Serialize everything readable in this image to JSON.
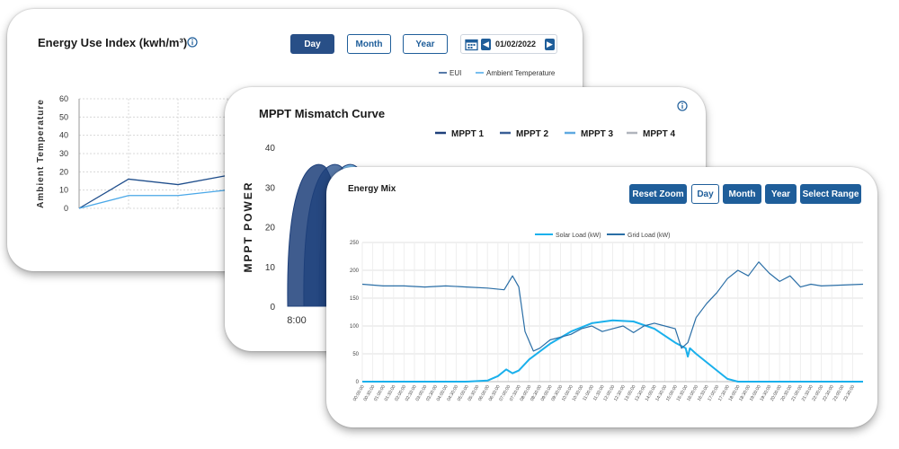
{
  "eui": {
    "title": "Energy Use Index (kwh/m³)",
    "info_icon": "info-circle-icon",
    "buttons": {
      "day": "Day",
      "month": "Month",
      "year": "Year"
    },
    "date": "01/02/2022",
    "calendar_icon": "calendar-icon",
    "prev_icon": "chevron-left-icon",
    "next_icon": "chevron-right-icon",
    "legend": [
      "EUI",
      "Ambient Temperature"
    ],
    "ylabel": "Ambient Temperature",
    "yticks": [
      "60",
      "50",
      "40",
      "30",
      "20",
      "10",
      "0"
    ]
  },
  "mppt": {
    "title": "MPPT Mismatch Curve",
    "info_icon": "info-circle-icon",
    "legend": [
      "MPPT 1",
      "MPPT 2",
      "MPPT 3",
      "MPPT 4"
    ],
    "ylabel": "MPPT POWER",
    "yticks": [
      "40",
      "30",
      "20",
      "10",
      "0"
    ],
    "xticks": [
      "8:00"
    ]
  },
  "mix": {
    "title": "Energy Mix",
    "buttons": {
      "reset_zoom": "Reset Zoom",
      "day": "Day",
      "month": "Month",
      "year": "Year",
      "select_range": "Select Range"
    },
    "legend": [
      "Solar Load (kW)",
      "Grid Load (kW)"
    ],
    "yticks": [
      "250",
      "200",
      "150",
      "100",
      "50",
      "0"
    ]
  },
  "colors": {
    "eui": "#1f4e8c",
    "ambient": "#4aa8e8",
    "mppt1": "#1d3f7a",
    "mppt2": "#3a5f96",
    "mppt3": "#5fa9e0",
    "mppt4": "#b0b4bc",
    "solar": "#1ab0ec",
    "grid": "#2a6ea6"
  },
  "chart_data": [
    {
      "type": "line",
      "title": "Energy Use Index (kwh/m³)",
      "ylabel": "Ambient Temperature",
      "ylim": [
        0,
        60
      ],
      "series": [
        {
          "name": "EUI",
          "x": [
            0,
            1,
            2,
            3,
            4
          ],
          "values": [
            0,
            16,
            13,
            18,
            21
          ]
        },
        {
          "name": "Ambient Temperature",
          "x": [
            0,
            1,
            2,
            3,
            4
          ],
          "values": [
            0,
            7,
            7,
            10,
            16
          ]
        }
      ],
      "grid": true,
      "legend": "top-right"
    },
    {
      "type": "area",
      "title": "MPPT Mismatch Curve",
      "ylabel": "MPPT POWER",
      "ylim": [
        0,
        40
      ],
      "x_tick_labels": [
        "8:00"
      ],
      "series": [
        {
          "name": "MPPT 1",
          "peak": 35
        },
        {
          "name": "MPPT 2",
          "peak": 35
        },
        {
          "name": "MPPT 3",
          "peak": 35
        },
        {
          "name": "MPPT 4",
          "peak": 35
        }
      ],
      "legend": "top-right"
    },
    {
      "type": "line",
      "title": "Energy Mix",
      "ylim": [
        0,
        250
      ],
      "x_tick_labels": [
        "00:00:00",
        "00:30:00",
        "01:00:00",
        "01:30:00",
        "02:00:00",
        "02:30:00",
        "03:00:00",
        "03:30:00",
        "04:00:00",
        "04:30:00",
        "05:00:00",
        "05:30:00",
        "06:00:00",
        "06:30:00",
        "07:00:00",
        "07:30:00",
        "08:00:00",
        "08:30:00",
        "09:00:00",
        "09:30:00",
        "10:00:00",
        "10:30:00",
        "11:00:00",
        "11:30:00",
        "12:00:00",
        "12:30:00",
        "13:00:00",
        "13:30:00",
        "14:00:00",
        "14:30:00",
        "15:00:00",
        "15:30:00",
        "16:00:00",
        "16:30:00",
        "17:00:00",
        "17:30:00",
        "18:00:00",
        "18:30:00",
        "19:00:00",
        "19:30:00",
        "20:00:00",
        "20:30:00",
        "21:00:00",
        "21:30:00",
        "22:00:00",
        "22:30:00",
        "23:00:00",
        "23:30:00"
      ],
      "x_hours": [
        0,
        24
      ],
      "series": [
        {
          "name": "Solar Load (kW)",
          "x": [
            0,
            5,
            6,
            6.5,
            6.9,
            7.2,
            7.5,
            8,
            9,
            10,
            11,
            12,
            13,
            14,
            15,
            15.5,
            15.6,
            15.7,
            16,
            17,
            17.5,
            18,
            24
          ],
          "values": [
            0,
            0,
            2,
            10,
            22,
            15,
            20,
            40,
            68,
            90,
            105,
            110,
            108,
            95,
            70,
            60,
            45,
            60,
            50,
            20,
            5,
            0,
            0
          ]
        },
        {
          "name": "Grid Load (kW)",
          "x": [
            0,
            1,
            2,
            3,
            4,
            5,
            6,
            6.8,
            7.2,
            7.5,
            7.8,
            8.2,
            8.5,
            9,
            9.5,
            10,
            10.5,
            11,
            11.5,
            12,
            12.5,
            13,
            13.5,
            14,
            14.5,
            15,
            15.3,
            15.6,
            16,
            16.5,
            17,
            17.5,
            18,
            18.5,
            19,
            19.5,
            20,
            20.5,
            21,
            21.5,
            22,
            24
          ],
          "values": [
            175,
            172,
            172,
            170,
            172,
            170,
            168,
            165,
            190,
            170,
            90,
            55,
            60,
            75,
            80,
            85,
            95,
            100,
            90,
            95,
            100,
            88,
            100,
            105,
            100,
            95,
            60,
            70,
            115,
            140,
            160,
            185,
            200,
            190,
            215,
            195,
            180,
            190,
            170,
            175,
            172,
            175
          ]
        }
      ],
      "grid": true,
      "legend": "top"
    }
  ]
}
